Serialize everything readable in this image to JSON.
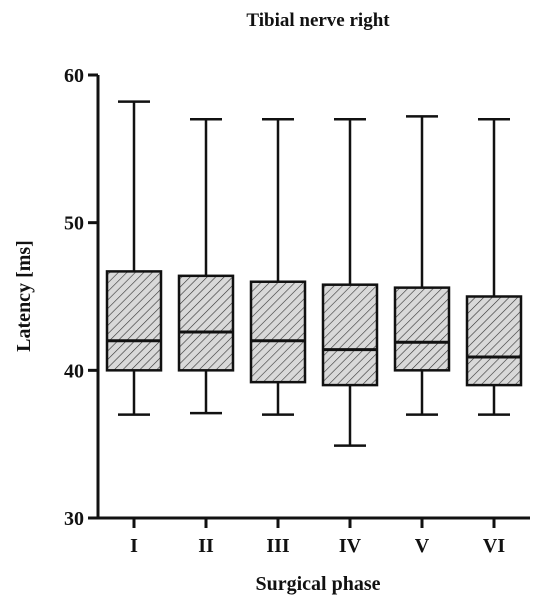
{
  "chart_data": {
    "type": "box",
    "title": "Tibial nerve right",
    "xlabel": "Surgical phase",
    "ylabel": "Latency  [ms]",
    "ylim": [
      30,
      60
    ],
    "yticks": [
      30,
      40,
      50,
      60
    ],
    "categories": [
      "I",
      "II",
      "III",
      "IV",
      "V",
      "VI"
    ],
    "boxes": [
      {
        "min": 37.0,
        "q1": 40.0,
        "median": 42.0,
        "q3": 46.7,
        "max": 58.2
      },
      {
        "min": 37.1,
        "q1": 40.0,
        "median": 42.6,
        "q3": 46.4,
        "max": 57.0
      },
      {
        "min": 37.0,
        "q1": 39.2,
        "median": 42.0,
        "q3": 46.0,
        "max": 57.0
      },
      {
        "min": 34.9,
        "q1": 39.0,
        "median": 41.4,
        "q3": 45.8,
        "max": 57.0
      },
      {
        "min": 37.0,
        "q1": 40.0,
        "median": 41.9,
        "q3": 45.6,
        "max": 57.2
      },
      {
        "min": 37.0,
        "q1": 39.0,
        "median": 40.9,
        "q3": 45.0,
        "max": 57.0
      }
    ],
    "box_fill": "hatched",
    "grid": false,
    "legend": "none",
    "colors": {
      "line": "#111111",
      "hatch": "#333333",
      "box_background": "#d9d9d9"
    }
  }
}
